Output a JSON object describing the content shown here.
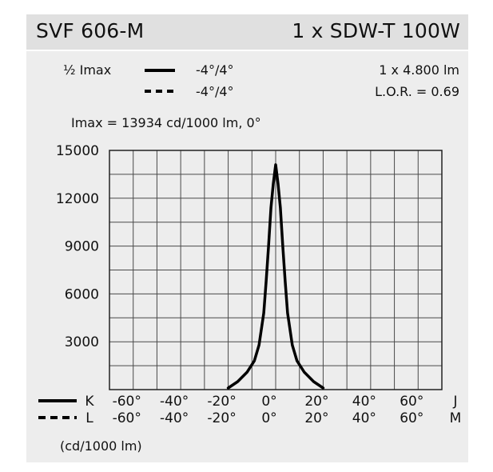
{
  "header": {
    "luminaire": "SVF 606-M",
    "lamp": "1 x SDW-T 100W"
  },
  "legend": {
    "half_imax_label": "½ Imax",
    "solid_range": "-4°/4°",
    "dashed_range": "-4°/4°",
    "flux": "1 x 4.800 lm",
    "lor": "L.O.R. = 0.69",
    "imax_note": "Imax = 13934 cd/1000 lm, 0°"
  },
  "axis_rows": [
    {
      "name": "K",
      "ticks": [
        "-60°",
        "-40°",
        "-20°",
        "0°",
        "20°",
        "40°",
        "60°"
      ],
      "end": "J",
      "style": "solid"
    },
    {
      "name": "L",
      "ticks": [
        "-60°",
        "-40°",
        "-20°",
        "0°",
        "20°",
        "40°",
        "60°"
      ],
      "end": "M",
      "style": "dashed"
    }
  ],
  "unit_note": "(cd/1000 lm)",
  "colors": {
    "curve": "#000000",
    "grid": "#4a4a4a",
    "panel": "#ededed",
    "titlebar": "#e0e0e0"
  },
  "chart_data": {
    "type": "line",
    "x_range": [
      -70,
      70
    ],
    "ylim": [
      0,
      15000
    ],
    "yticks": [
      3000,
      6000,
      9000,
      12000,
      15000
    ],
    "ytick_labels": [
      "3000",
      "6000",
      "9000",
      "12000",
      "15000"
    ],
    "grid": true,
    "series": [
      {
        "style": "solid",
        "x": [
          -20,
          -16,
          -12,
          -9,
          -7,
          -5,
          -4,
          -3,
          -2,
          -1,
          0,
          1,
          2,
          3,
          4,
          5,
          7,
          9,
          12,
          16,
          20
        ],
        "y": [
          100,
          500,
          1100,
          1800,
          2800,
          4800,
          6800,
          9000,
          11400,
          12900,
          14100,
          12900,
          11400,
          9000,
          6800,
          4800,
          2800,
          1800,
          1100,
          500,
          100
        ]
      }
    ]
  }
}
